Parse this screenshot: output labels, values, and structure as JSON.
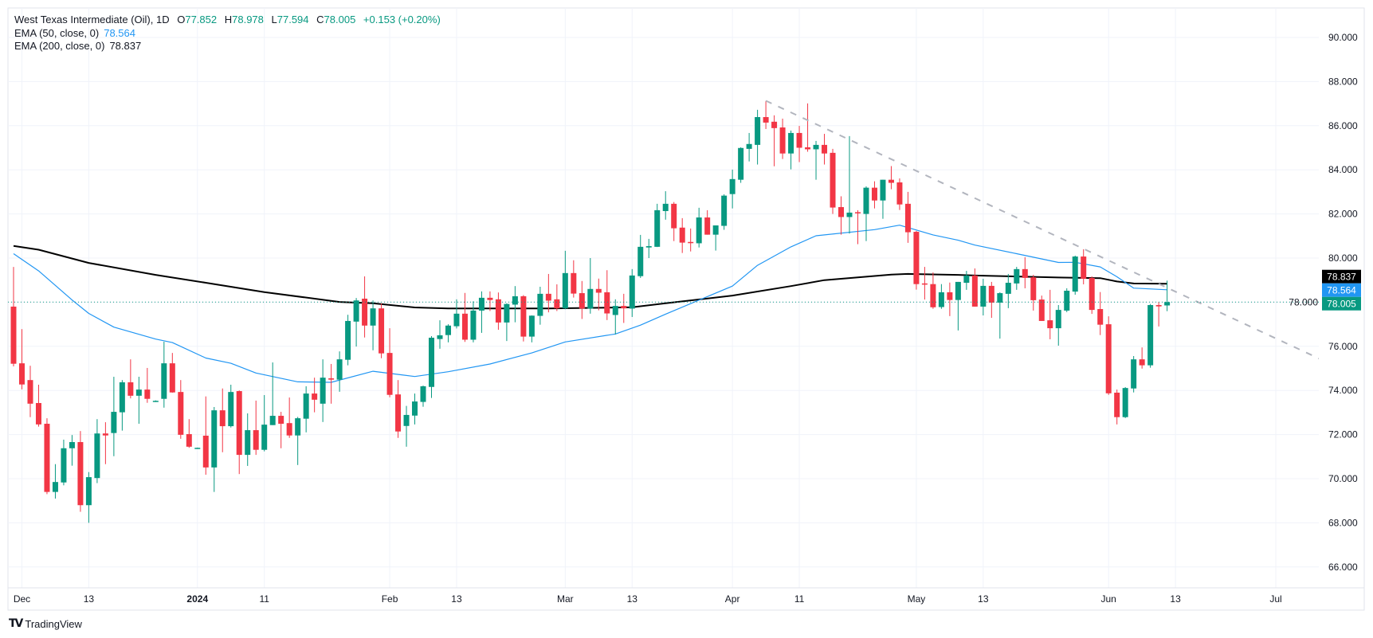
{
  "legend": {
    "title": "West Texas Intermediate (Oil), 1D",
    "o_label": "O",
    "o_value": "77.852",
    "h_label": "H",
    "h_value": "78.978",
    "l_label": "L",
    "l_value": "77.594",
    "c_label": "C",
    "c_value": "78.005",
    "change": "+0.153 (+0.20%)",
    "ema50_label": "EMA (50, close, 0)",
    "ema50_value": "78.564",
    "ema200_label": "EMA (200, close, 0)",
    "ema200_value": "78.837"
  },
  "logo": {
    "mark": "TV",
    "text": "TradingView"
  },
  "colors": {
    "up": "#089981",
    "down": "#F23645",
    "ema50": "#2196F3",
    "ema200": "#000000",
    "trendline": "#B2B5BE",
    "grid": "#F0F3FA"
  },
  "chart_data": {
    "type": "candlestick",
    "title": "West Texas Intermediate (Oil), 1D",
    "ylim": [
      65,
      90.7
    ],
    "grid": true,
    "y_ticks": [
      "66.000",
      "68.000",
      "70.000",
      "72.000",
      "74.000",
      "76.000",
      "78.000",
      "80.000",
      "82.000",
      "84.000",
      "86.000",
      "88.000",
      "90.000"
    ],
    "x_ticks": [
      {
        "label": "Dec",
        "date": "2023-12-01"
      },
      {
        "label": "13",
        "date": "2023-12-13"
      },
      {
        "label": "2024",
        "date": "2024-01-01"
      },
      {
        "label": "11",
        "date": "2024-01-11"
      },
      {
        "label": "Feb",
        "date": "2024-02-01"
      },
      {
        "label": "13",
        "date": "2024-02-13"
      },
      {
        "label": "Mar",
        "date": "2024-03-01"
      },
      {
        "label": "13",
        "date": "2024-03-13"
      },
      {
        "label": "Apr",
        "date": "2024-04-01"
      },
      {
        "label": "11",
        "date": "2024-04-11"
      },
      {
        "label": "May",
        "date": "2024-05-01"
      },
      {
        "label": "13",
        "date": "2024-05-13"
      },
      {
        "label": "Jun",
        "date": "2024-06-03"
      },
      {
        "label": "13",
        "date": "2024-06-13"
      },
      {
        "label": "Jul",
        "date": "2024-07-01"
      }
    ],
    "candles_fields": [
      "date",
      "open",
      "high",
      "low",
      "close"
    ],
    "candles": [
      [
        "2023-11-30",
        77.8,
        79.6,
        75.09,
        75.21
      ],
      [
        "2023-12-01",
        75.23,
        76.78,
        74.05,
        74.27
      ],
      [
        "2023-12-04",
        74.47,
        75.12,
        72.79,
        73.4
      ],
      [
        "2023-12-05",
        73.43,
        74.26,
        72.36,
        72.46
      ],
      [
        "2023-12-06",
        72.49,
        72.74,
        69.3,
        69.4
      ],
      [
        "2023-12-07",
        69.4,
        70.66,
        69.1,
        69.85
      ],
      [
        "2023-12-08",
        69.83,
        71.77,
        69.7,
        71.38
      ],
      [
        "2023-12-11",
        71.38,
        71.98,
        70.59,
        71.66
      ],
      [
        "2023-12-12",
        71.66,
        72.16,
        68.5,
        68.8
      ],
      [
        "2023-12-13",
        68.8,
        70.3,
        68.0,
        70.07
      ],
      [
        "2023-12-14",
        70.03,
        72.7,
        69.8,
        72.05
      ],
      [
        "2023-12-15",
        72.05,
        72.56,
        70.66,
        71.96
      ],
      [
        "2023-12-18",
        72.07,
        74.62,
        71.02,
        73.03
      ],
      [
        "2023-12-19",
        73.01,
        74.47,
        72.18,
        74.37
      ],
      [
        "2023-12-20",
        74.37,
        75.41,
        73.64,
        73.76
      ],
      [
        "2023-12-21",
        73.76,
        74.62,
        72.49,
        74.04
      ],
      [
        "2023-12-22",
        74.04,
        75.02,
        73.44,
        73.62
      ],
      [
        "2023-12-25",
        73.52,
        73.55,
        73.48,
        73.53
      ],
      [
        "2023-12-26",
        73.62,
        76.21,
        73.22,
        75.23
      ],
      [
        "2023-12-27",
        75.23,
        75.7,
        73.9,
        73.91
      ],
      [
        "2023-12-28",
        73.93,
        74.47,
        71.81,
        71.99
      ],
      [
        "2023-12-29",
        72.02,
        72.7,
        71.4,
        71.45
      ],
      [
        "2024-01-01",
        71.39,
        71.41,
        71.37,
        71.4
      ],
      [
        "2024-01-02",
        71.95,
        73.73,
        70.18,
        70.51
      ],
      [
        "2024-01-03",
        70.51,
        73.25,
        69.4,
        73.1
      ],
      [
        "2024-01-04",
        73.1,
        74.09,
        71.2,
        72.38
      ],
      [
        "2024-01-05",
        72.38,
        74.26,
        72.32,
        73.93
      ],
      [
        "2024-01-08",
        73.97,
        74.0,
        70.21,
        71.08
      ],
      [
        "2024-01-09",
        71.08,
        72.96,
        70.58,
        72.2
      ],
      [
        "2024-01-10",
        72.2,
        73.54,
        71.08,
        71.31
      ],
      [
        "2024-01-11",
        71.31,
        73.79,
        71.24,
        72.45
      ],
      [
        "2024-01-12",
        72.43,
        75.27,
        72.43,
        72.85
      ],
      [
        "2024-01-15",
        72.85,
        73.03,
        71.38,
        72.49
      ],
      [
        "2024-01-16",
        72.52,
        73.68,
        71.85,
        71.96
      ],
      [
        "2024-01-17",
        71.96,
        72.8,
        70.62,
        72.74
      ],
      [
        "2024-01-18",
        72.72,
        74.19,
        72.1,
        73.86
      ],
      [
        "2024-01-19",
        73.86,
        74.58,
        73.01,
        73.58
      ],
      [
        "2024-01-22",
        73.4,
        75.41,
        72.57,
        74.58
      ],
      [
        "2024-01-23",
        74.55,
        75.2,
        73.4,
        74.49
      ],
      [
        "2024-01-24",
        74.49,
        75.77,
        73.94,
        75.41
      ],
      [
        "2024-01-25",
        75.39,
        77.43,
        75.14,
        77.15
      ],
      [
        "2024-01-26",
        77.12,
        78.19,
        75.99,
        78.08
      ],
      [
        "2024-01-29",
        78.16,
        79.17,
        76.4,
        76.94
      ],
      [
        "2024-01-30",
        76.94,
        78.08,
        75.82,
        77.72
      ],
      [
        "2024-01-31",
        77.72,
        77.94,
        75.46,
        75.68
      ],
      [
        "2024-02-01",
        75.7,
        76.82,
        73.69,
        73.8
      ],
      [
        "2024-02-02",
        73.82,
        74.47,
        71.85,
        72.14
      ],
      [
        "2024-02-05",
        72.39,
        73.3,
        71.45,
        72.89
      ],
      [
        "2024-02-06",
        72.86,
        73.86,
        72.46,
        73.5
      ],
      [
        "2024-02-07",
        73.48,
        74.22,
        73.26,
        74.19
      ],
      [
        "2024-02-08",
        74.16,
        76.46,
        73.66,
        76.39
      ],
      [
        "2024-02-09",
        76.33,
        77.18,
        75.89,
        76.5
      ],
      [
        "2024-02-12",
        76.51,
        77.0,
        76.18,
        76.94
      ],
      [
        "2024-02-13",
        76.91,
        78.13,
        76.81,
        77.48
      ],
      [
        "2024-02-14",
        77.48,
        78.42,
        76.2,
        76.3
      ],
      [
        "2024-02-15",
        76.3,
        78.04,
        76.18,
        77.62
      ],
      [
        "2024-02-16",
        77.62,
        78.49,
        76.61,
        78.2
      ],
      [
        "2024-02-19",
        78.2,
        78.49,
        77.6,
        78.1
      ],
      [
        "2024-02-20",
        78.13,
        78.44,
        76.75,
        77.08
      ],
      [
        "2024-02-21",
        77.08,
        77.95,
        76.24,
        77.92
      ],
      [
        "2024-02-22",
        77.89,
        78.73,
        77.09,
        78.27
      ],
      [
        "2024-02-23",
        78.27,
        78.32,
        76.22,
        76.44
      ],
      [
        "2024-02-26",
        76.44,
        77.4,
        76.18,
        77.39
      ],
      [
        "2024-02-27",
        77.38,
        78.7,
        76.98,
        78.38
      ],
      [
        "2024-02-28",
        78.38,
        79.28,
        77.54,
        78.07
      ],
      [
        "2024-02-29",
        78.13,
        78.81,
        77.6,
        77.72
      ],
      [
        "2024-03-01",
        77.72,
        80.33,
        77.68,
        79.32
      ],
      [
        "2024-03-04",
        79.32,
        79.9,
        78.21,
        78.39
      ],
      [
        "2024-03-05",
        78.41,
        78.96,
        77.24,
        77.71
      ],
      [
        "2024-03-06",
        77.71,
        80.0,
        77.48,
        78.6
      ],
      [
        "2024-03-07",
        78.6,
        79.07,
        77.63,
        78.43
      ],
      [
        "2024-03-08",
        78.45,
        79.45,
        77.19,
        77.49
      ],
      [
        "2024-03-11",
        77.42,
        78.13,
        76.54,
        77.83
      ],
      [
        "2024-03-12",
        77.83,
        78.38,
        77.06,
        77.72
      ],
      [
        "2024-03-13",
        77.71,
        79.5,
        77.33,
        79.21
      ],
      [
        "2024-03-14",
        79.18,
        81.05,
        79.1,
        80.51
      ],
      [
        "2024-03-15",
        80.48,
        80.87,
        80.0,
        80.54
      ],
      [
        "2024-03-18",
        80.51,
        82.46,
        80.5,
        82.17
      ],
      [
        "2024-03-19",
        82.13,
        83.03,
        81.74,
        82.46
      ],
      [
        "2024-03-20",
        82.46,
        82.54,
        80.77,
        81.35
      ],
      [
        "2024-03-21",
        81.38,
        81.81,
        80.23,
        80.7
      ],
      [
        "2024-03-22",
        80.73,
        81.34,
        80.3,
        80.7
      ],
      [
        "2024-03-25",
        80.67,
        82.28,
        80.48,
        81.84
      ],
      [
        "2024-03-26",
        81.84,
        82.17,
        81.06,
        81.06
      ],
      [
        "2024-03-27",
        81.06,
        81.48,
        80.34,
        81.48
      ],
      [
        "2024-03-28",
        81.46,
        82.89,
        81.28,
        82.83
      ],
      [
        "2024-04-01",
        82.9,
        84.01,
        82.25,
        83.58
      ],
      [
        "2024-04-02",
        83.55,
        85.02,
        83.41,
        84.99
      ],
      [
        "2024-04-03",
        84.95,
        85.67,
        84.38,
        85.17
      ],
      [
        "2024-04-04",
        85.13,
        86.72,
        84.24,
        86.39
      ],
      [
        "2024-04-05",
        86.39,
        87.12,
        85.85,
        86.14
      ],
      [
        "2024-04-08",
        86.18,
        86.47,
        84.16,
        85.89
      ],
      [
        "2024-04-09",
        85.92,
        86.32,
        84.49,
        84.74
      ],
      [
        "2024-04-10",
        84.74,
        85.78,
        84.02,
        85.67
      ],
      [
        "2024-04-11",
        85.67,
        85.99,
        84.35,
        85.0
      ],
      [
        "2024-04-12",
        85.02,
        87.01,
        84.82,
        84.93
      ],
      [
        "2024-04-15",
        84.93,
        85.31,
        83.55,
        85.13
      ],
      [
        "2024-04-16",
        85.13,
        85.63,
        84.24,
        84.74
      ],
      [
        "2024-04-17",
        84.77,
        84.95,
        82.0,
        82.29
      ],
      [
        "2024-04-18",
        82.31,
        82.8,
        81.06,
        81.86
      ],
      [
        "2024-04-19",
        81.86,
        85.53,
        81.11,
        82.06
      ],
      [
        "2024-04-22",
        82.08,
        82.17,
        80.63,
        82.05
      ],
      [
        "2024-04-23",
        82.0,
        83.25,
        80.77,
        83.19
      ],
      [
        "2024-04-24",
        83.19,
        83.48,
        82.25,
        82.61
      ],
      [
        "2024-04-25",
        82.61,
        83.55,
        81.78,
        83.55
      ],
      [
        "2024-04-26",
        83.55,
        84.17,
        83.12,
        83.41
      ],
      [
        "2024-04-29",
        83.43,
        83.61,
        82.18,
        82.43
      ],
      [
        "2024-04-30",
        82.46,
        83.0,
        80.69,
        81.17
      ],
      [
        "2024-05-01",
        81.19,
        81.23,
        78.57,
        78.82
      ],
      [
        "2024-05-02",
        78.85,
        79.6,
        78.12,
        78.83
      ],
      [
        "2024-05-03",
        78.82,
        79.35,
        77.7,
        77.77
      ],
      [
        "2024-05-06",
        77.78,
        78.82,
        77.7,
        78.45
      ],
      [
        "2024-05-07",
        78.45,
        78.89,
        77.37,
        78.1
      ],
      [
        "2024-05-08",
        78.1,
        78.92,
        76.72,
        78.92
      ],
      [
        "2024-05-09",
        78.88,
        79.42,
        78.56,
        79.21
      ],
      [
        "2024-05-10",
        79.21,
        79.53,
        77.8,
        77.8
      ],
      [
        "2024-05-13",
        77.8,
        79.06,
        77.4,
        78.74
      ],
      [
        "2024-05-14",
        78.74,
        78.92,
        77.29,
        77.98
      ],
      [
        "2024-05-15",
        77.98,
        78.45,
        76.35,
        78.41
      ],
      [
        "2024-05-16",
        78.38,
        79.28,
        77.73,
        78.88
      ],
      [
        "2024-05-17",
        78.85,
        79.6,
        78.56,
        79.5
      ],
      [
        "2024-05-20",
        79.5,
        80.04,
        78.63,
        79.1
      ],
      [
        "2024-05-21",
        79.13,
        79.24,
        77.62,
        78.09
      ],
      [
        "2024-05-22",
        78.12,
        78.3,
        77.15,
        77.15
      ],
      [
        "2024-05-23",
        77.18,
        78.56,
        76.32,
        76.82
      ],
      [
        "2024-05-24",
        76.82,
        77.87,
        76.03,
        77.65
      ],
      [
        "2024-05-27",
        77.62,
        78.63,
        77.55,
        78.52
      ],
      [
        "2024-05-28",
        78.48,
        80.11,
        78.34,
        80.07
      ],
      [
        "2024-05-29",
        80.07,
        80.4,
        78.81,
        79.06
      ],
      [
        "2024-05-30",
        79.1,
        79.17,
        77.47,
        77.65
      ],
      [
        "2024-05-31",
        77.69,
        78.46,
        76.51,
        76.98
      ],
      [
        "2024-06-03",
        77.0,
        77.36,
        73.8,
        73.87
      ],
      [
        "2024-06-04",
        73.9,
        74.04,
        72.46,
        72.79
      ],
      [
        "2024-06-05",
        72.79,
        74.15,
        72.75,
        74.11
      ],
      [
        "2024-06-06",
        74.09,
        75.56,
        73.91,
        75.41
      ],
      [
        "2024-06-07",
        75.41,
        75.95,
        74.99,
        75.14
      ],
      [
        "2024-06-10",
        75.14,
        77.92,
        75.03,
        77.87
      ],
      [
        "2024-06-11",
        77.87,
        78.01,
        76.9,
        77.81
      ],
      [
        "2024-06-12",
        77.852,
        78.978,
        77.594,
        78.005
      ]
    ],
    "ema50": [
      [
        "2023-11-30",
        80.2
      ],
      [
        "2023-12-05",
        79.42
      ],
      [
        "2023-12-11",
        78.1
      ],
      [
        "2023-12-13",
        77.49
      ],
      [
        "2023-12-18",
        76.87
      ],
      [
        "2023-12-25",
        76.33
      ],
      [
        "2023-12-27",
        76.17
      ],
      [
        "2024-01-02",
        75.47
      ],
      [
        "2024-01-05",
        75.23
      ],
      [
        "2024-01-10",
        74.79
      ],
      [
        "2024-01-17",
        74.39
      ],
      [
        "2024-01-23",
        74.37
      ],
      [
        "2024-01-30",
        74.87
      ],
      [
        "2024-02-06",
        74.63
      ],
      [
        "2024-02-12",
        74.85
      ],
      [
        "2024-02-19",
        75.2
      ],
      [
        "2024-02-26",
        75.7
      ],
      [
        "2024-03-01",
        76.2
      ],
      [
        "2024-03-11",
        76.56
      ],
      [
        "2024-03-14",
        76.96
      ],
      [
        "2024-03-19",
        77.46
      ],
      [
        "2024-04-01",
        78.73
      ],
      [
        "2024-04-04",
        79.67
      ],
      [
        "2024-04-10",
        80.51
      ],
      [
        "2024-04-15",
        81.01
      ],
      [
        "2024-04-24",
        81.29
      ],
      [
        "2024-04-29",
        81.49
      ],
      [
        "2024-05-03",
        81.05
      ],
      [
        "2024-05-08",
        80.81
      ],
      [
        "2024-05-10",
        80.59
      ],
      [
        "2024-05-17",
        80.2
      ],
      [
        "2024-05-24",
        79.8
      ],
      [
        "2024-05-28",
        79.81
      ],
      [
        "2024-05-31",
        79.6
      ],
      [
        "2024-06-04",
        79.15
      ],
      [
        "2024-06-06",
        78.64
      ],
      [
        "2024-06-12",
        78.564
      ]
    ],
    "ema200": [
      [
        "2023-11-30",
        80.55
      ],
      [
        "2023-12-05",
        80.38
      ],
      [
        "2023-12-13",
        79.78
      ],
      [
        "2023-12-25",
        79.24
      ],
      [
        "2024-01-02",
        78.88
      ],
      [
        "2024-01-11",
        78.46
      ],
      [
        "2024-01-24",
        78.01
      ],
      [
        "2024-01-30",
        77.95
      ],
      [
        "2024-02-06",
        77.76
      ],
      [
        "2024-02-12",
        77.72
      ],
      [
        "2024-02-28",
        77.72
      ],
      [
        "2024-03-13",
        77.77
      ],
      [
        "2024-03-19",
        77.95
      ],
      [
        "2024-04-01",
        78.3
      ],
      [
        "2024-04-10",
        78.73
      ],
      [
        "2024-04-16",
        79.0
      ],
      [
        "2024-04-26",
        79.25
      ],
      [
        "2024-04-30",
        79.28
      ],
      [
        "2024-05-08",
        79.24
      ],
      [
        "2024-05-10",
        79.21
      ],
      [
        "2024-05-24",
        79.12
      ],
      [
        "2024-05-31",
        79.09
      ],
      [
        "2024-06-04",
        78.94
      ],
      [
        "2024-06-06",
        78.85
      ],
      [
        "2024-06-12",
        78.837
      ]
    ],
    "trendline": [
      [
        "2024-04-05",
        87.13
      ],
      [
        "2024-07-09",
        75.3
      ]
    ],
    "last_price_line": 78.005,
    "price_labels": [
      {
        "value": 78.837,
        "text": "78.837",
        "color": "#000000"
      },
      {
        "value": 78.564,
        "text": "78.564",
        "color": "#2196F3"
      },
      {
        "value": 78.005,
        "text": "78.005",
        "color": "#089981"
      }
    ]
  }
}
